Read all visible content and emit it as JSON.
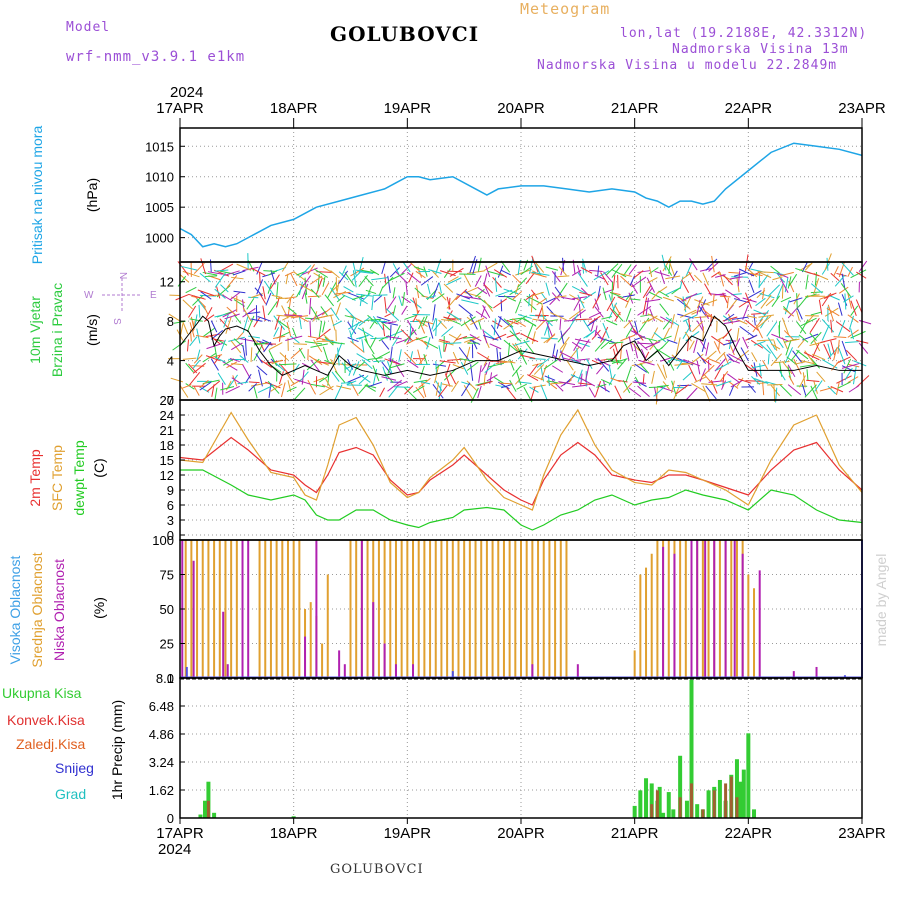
{
  "header": {
    "model_label": "Model",
    "model_name": "wrf-nmm_v3.9.1 e1km",
    "title": "GOLUBOVCI",
    "meteogram": "Meteogram",
    "lonlat": "lon,lat (19.2188E, 42.3312N)",
    "altitude": "Nadmorska Visina 13m",
    "model_altitude": "Nadmorska Visina u modelu 22.2849m",
    "year_top": "2024",
    "year_bottom": "2024",
    "footer": "GOLUBOVCI",
    "credit": "made by Angel"
  },
  "colors": {
    "pressure": "#1ea5e6",
    "temp2m": "#e83030",
    "sfc": "#e0a030",
    "dewpt": "#22cc22",
    "high_cloud": "#5050e0",
    "mid_cloud": "#e0a030",
    "low_cloud": "#b020b0",
    "precip_total": "#33cc33",
    "precip_conv": "#e03030",
    "precip_frozen": "#e06020",
    "snow": "#3030d0",
    "grad": "#20c0c0",
    "model_text": "#9b4fd6",
    "meteogram_text": "#e8b060"
  },
  "panel_labels": {
    "pressure": [
      "Pritisak na nivou mora",
      "(hPa)"
    ],
    "wind": [
      "10m Vjetar",
      "Brzina i Pravac",
      "(m/s)"
    ],
    "compass": {
      "n": "N",
      "s": "S",
      "e": "E",
      "w": "W"
    },
    "temp": [
      "2m Temp",
      "SFC Temp",
      "dewpt Temp",
      "(C)"
    ],
    "cloud": [
      "Visoka Oblacnost",
      "Srednja Oblacnost",
      "Niska Oblacnost",
      "(%)"
    ],
    "precip": [
      "Ukupna Kisa",
      "Konvek.Kisa",
      "Zaledj.Kisa",
      "Snijeg",
      "Grad",
      "1hr Precip (mm)"
    ]
  },
  "chart_data": [
    {
      "type": "line",
      "name": "pressure",
      "x_categories": [
        "17APR",
        "18APR",
        "19APR",
        "20APR",
        "21APR",
        "22APR",
        "23APR"
      ],
      "ylim": [
        996,
        1018
      ],
      "yticks": [
        1000,
        1005,
        1010,
        1015
      ],
      "x_days": [
        0,
        0.1,
        0.2,
        0.3,
        0.4,
        0.5,
        0.6,
        0.7,
        0.8,
        1.0,
        1.2,
        1.4,
        1.6,
        1.8,
        1.9,
        2.0,
        2.1,
        2.2,
        2.4,
        2.6,
        2.7,
        2.8,
        3.0,
        3.2,
        3.4,
        3.6,
        3.8,
        4.0,
        4.1,
        4.2,
        4.3,
        4.4,
        4.5,
        4.6,
        4.7,
        4.8,
        5.0,
        5.2,
        5.4,
        5.6,
        5.8,
        6.0
      ],
      "values": [
        1001.5,
        1000.5,
        998.5,
        999,
        998.5,
        999,
        1000,
        1001,
        1002,
        1003,
        1005,
        1006,
        1007,
        1008,
        1009,
        1010,
        1010,
        1009.5,
        1010,
        1008,
        1007,
        1008,
        1008.5,
        1008.5,
        1008,
        1007.5,
        1008,
        1007.5,
        1006.5,
        1006,
        1005,
        1006,
        1006,
        1005.5,
        1006,
        1008,
        1011,
        1014,
        1015.5,
        1015,
        1014.5,
        1013.5
      ]
    },
    {
      "type": "line",
      "name": "wind",
      "ylim": [
        0,
        14
      ],
      "yticks": [
        0,
        4,
        8,
        12
      ],
      "x_days": [
        0,
        0.1,
        0.2,
        0.25,
        0.3,
        0.35,
        0.4,
        0.5,
        0.6,
        0.7,
        0.8,
        0.9,
        1.0,
        1.1,
        1.2,
        1.3,
        1.4,
        1.5,
        1.6,
        1.8,
        2.0,
        2.2,
        2.4,
        2.6,
        2.8,
        3.0,
        3.2,
        3.4,
        3.6,
        3.8,
        3.9,
        4.0,
        4.1,
        4.2,
        4.3,
        4.4,
        4.5,
        4.6,
        4.7,
        4.8,
        4.9,
        5.0,
        5.2,
        5.4,
        5.6,
        5.8,
        6.0
      ],
      "values": [
        5.5,
        7,
        8.5,
        8,
        5.5,
        6.5,
        7.2,
        7.5,
        7,
        5,
        3.5,
        2.5,
        3,
        3.5,
        3,
        2.5,
        4.5,
        3.5,
        3,
        2.5,
        3,
        2.5,
        3,
        4,
        4,
        5,
        4.5,
        4,
        3.5,
        4,
        5.5,
        6,
        4,
        5,
        3.5,
        5,
        6.5,
        6,
        8.5,
        7.5,
        5,
        3,
        3,
        3,
        3.5,
        3,
        3
      ]
    },
    {
      "type": "line",
      "name": "temperature",
      "ylim": [
        -1,
        27
      ],
      "yticks": [
        0,
        3,
        6,
        9,
        12,
        15,
        18,
        21,
        24,
        27
      ],
      "x_days": [
        0,
        0.2,
        0.45,
        0.6,
        0.8,
        1.0,
        1.1,
        1.2,
        1.3,
        1.4,
        1.55,
        1.7,
        1.85,
        2.0,
        2.1,
        2.2,
        2.4,
        2.5,
        2.7,
        2.85,
        3.0,
        3.1,
        3.2,
        3.35,
        3.5,
        3.65,
        3.8,
        4.0,
        4.15,
        4.3,
        4.45,
        4.6,
        4.8,
        5.0,
        5.2,
        5.4,
        5.6,
        5.8,
        6.0
      ],
      "series": [
        {
          "name": "2m Temp",
          "values": [
            15.5,
            15,
            19.5,
            17,
            13,
            12,
            10,
            8.5,
            12,
            16.5,
            17.5,
            16,
            11,
            8,
            8.5,
            11,
            14,
            16,
            12,
            9,
            7,
            6,
            11,
            16,
            18.5,
            16,
            12,
            11,
            10.5,
            12,
            12,
            11,
            9.5,
            8,
            13,
            17,
            18.5,
            13,
            9
          ]
        },
        {
          "name": "SFC Temp",
          "values": [
            15,
            14.5,
            24.5,
            19,
            12.5,
            11.5,
            8,
            7,
            14,
            22,
            23.5,
            18,
            10.5,
            7.5,
            8.5,
            11.5,
            15,
            17.5,
            11,
            7.5,
            6,
            5,
            12,
            20,
            25,
            18,
            13,
            10.5,
            10,
            13,
            12.5,
            11,
            9,
            6,
            15,
            22,
            24,
            14,
            8.5
          ]
        },
        {
          "name": "dewpt Temp",
          "values": [
            13,
            13,
            10,
            8,
            7,
            8,
            7,
            4,
            3,
            3,
            5,
            5,
            3,
            2,
            1.5,
            2.5,
            3.5,
            5,
            5.5,
            5,
            2,
            1,
            2,
            4,
            5,
            7,
            8,
            6,
            7,
            7.5,
            9,
            8,
            7,
            5,
            9,
            8,
            5,
            3,
            2.5
          ]
        }
      ]
    },
    {
      "type": "bar",
      "name": "cloud_cover",
      "ylim": [
        0,
        100
      ],
      "yticks": [
        0,
        25,
        50,
        75,
        100
      ],
      "series": [
        {
          "name": "Srednja Oblacnost",
          "bars": [
            [
              0.05,
              100
            ],
            [
              0.1,
              100
            ],
            [
              0.15,
              100
            ],
            [
              0.2,
              100
            ],
            [
              0.25,
              100
            ],
            [
              0.3,
              100
            ],
            [
              0.35,
              100
            ],
            [
              0.4,
              100
            ],
            [
              0.45,
              100
            ],
            [
              0.5,
              100
            ],
            [
              0.7,
              100
            ],
            [
              0.75,
              100
            ],
            [
              0.8,
              100
            ],
            [
              0.85,
              100
            ],
            [
              0.9,
              100
            ],
            [
              0.95,
              100
            ],
            [
              1.0,
              100
            ],
            [
              1.05,
              100
            ],
            [
              1.1,
              50
            ],
            [
              1.15,
              55
            ],
            [
              1.2,
              45
            ],
            [
              1.25,
              25
            ],
            [
              1.3,
              75
            ],
            [
              1.5,
              100
            ],
            [
              1.55,
              100
            ],
            [
              1.6,
              100
            ],
            [
              1.65,
              100
            ],
            [
              1.7,
              100
            ],
            [
              1.75,
              100
            ],
            [
              1.8,
              100
            ],
            [
              1.85,
              100
            ],
            [
              1.9,
              100
            ],
            [
              1.95,
              100
            ],
            [
              2.0,
              100
            ],
            [
              2.05,
              100
            ],
            [
              2.1,
              100
            ],
            [
              2.15,
              100
            ],
            [
              2.2,
              100
            ],
            [
              2.25,
              100
            ],
            [
              2.3,
              100
            ],
            [
              2.35,
              100
            ],
            [
              2.4,
              100
            ],
            [
              2.45,
              100
            ],
            [
              2.5,
              100
            ],
            [
              2.55,
              100
            ],
            [
              2.6,
              100
            ],
            [
              2.65,
              100
            ],
            [
              2.7,
              100
            ],
            [
              2.75,
              100
            ],
            [
              2.8,
              100
            ],
            [
              2.85,
              100
            ],
            [
              2.9,
              100
            ],
            [
              2.95,
              100
            ],
            [
              3.0,
              100
            ],
            [
              3.05,
              100
            ],
            [
              3.1,
              100
            ],
            [
              3.15,
              100
            ],
            [
              3.2,
              100
            ],
            [
              3.25,
              100
            ],
            [
              3.3,
              100
            ],
            [
              3.35,
              100
            ],
            [
              3.4,
              100
            ],
            [
              4.0,
              20
            ],
            [
              4.05,
              75
            ],
            [
              4.1,
              80
            ],
            [
              4.15,
              90
            ],
            [
              4.2,
              100
            ],
            [
              4.25,
              100
            ],
            [
              4.3,
              100
            ],
            [
              4.35,
              100
            ],
            [
              4.4,
              100
            ],
            [
              4.45,
              100
            ],
            [
              4.5,
              100
            ],
            [
              4.55,
              100
            ],
            [
              4.6,
              100
            ],
            [
              4.65,
              100
            ],
            [
              4.7,
              100
            ],
            [
              4.75,
              100
            ],
            [
              4.8,
              100
            ],
            [
              4.85,
              100
            ],
            [
              4.9,
              100
            ],
            [
              4.95,
              100
            ],
            [
              5.0,
              75
            ],
            [
              5.05,
              65
            ],
            [
              6.0,
              100
            ]
          ]
        },
        {
          "name": "Niska Oblacnost",
          "bars": [
            [
              0.02,
              100
            ],
            [
              0.12,
              85
            ],
            [
              0.38,
              48
            ],
            [
              0.42,
              10
            ],
            [
              0.55,
              100
            ],
            [
              0.6,
              100
            ],
            [
              1.1,
              30
            ],
            [
              1.2,
              100
            ],
            [
              1.4,
              20
            ],
            [
              1.45,
              10
            ],
            [
              1.6,
              100
            ],
            [
              1.7,
              55
            ],
            [
              1.8,
              25
            ],
            [
              1.9,
              10
            ],
            [
              2.05,
              10
            ],
            [
              3.1,
              10
            ],
            [
              3.5,
              10
            ],
            [
              4.25,
              95
            ],
            [
              4.35,
              90
            ],
            [
              4.5,
              100
            ],
            [
              4.55,
              100
            ],
            [
              4.62,
              100
            ],
            [
              4.7,
              100
            ],
            [
              4.8,
              100
            ],
            [
              4.88,
              100
            ],
            [
              4.95,
              90
            ],
            [
              5.1,
              78
            ],
            [
              5.4,
              5
            ],
            [
              5.6,
              8
            ]
          ]
        },
        {
          "name": "Visoka Oblacnost",
          "bars": [
            [
              0.06,
              8
            ],
            [
              2.4,
              5
            ],
            [
              5.85,
              2
            ],
            [
              6.0,
              100
            ]
          ]
        }
      ]
    },
    {
      "type": "bar",
      "name": "precipitation",
      "ylim": [
        0,
        8.1
      ],
      "yticks": [
        0,
        1.62,
        3.24,
        4.86,
        6.48,
        8.1
      ],
      "series": [
        {
          "name": "Ukupna Kisa",
          "bars": [
            [
              0.18,
              0.2
            ],
            [
              0.22,
              1.0
            ],
            [
              0.25,
              2.1
            ],
            [
              0.3,
              0.3
            ],
            [
              1.0,
              0.1
            ],
            [
              4.0,
              0.7
            ],
            [
              4.05,
              1.6
            ],
            [
              4.1,
              2.3
            ],
            [
              4.15,
              2.0
            ],
            [
              4.2,
              1.0
            ],
            [
              4.22,
              1.8
            ],
            [
              4.25,
              0.3
            ],
            [
              4.3,
              1.5
            ],
            [
              4.34,
              0.5
            ],
            [
              4.4,
              3.6
            ],
            [
              4.46,
              1.0
            ],
            [
              4.5,
              8.0
            ],
            [
              4.55,
              0.8
            ],
            [
              4.6,
              0.5
            ],
            [
              4.65,
              1.6
            ],
            [
              4.7,
              1.8
            ],
            [
              4.75,
              2.2
            ],
            [
              4.8,
              1.0
            ],
            [
              4.85,
              2.5
            ],
            [
              4.9,
              3.4
            ],
            [
              4.93,
              2.1
            ],
            [
              4.96,
              2.8
            ],
            [
              5.0,
              4.9
            ],
            [
              5.05,
              0.5
            ]
          ]
        },
        {
          "name": "Konvek.Kisa",
          "bars": [
            [
              0.25,
              1.0
            ],
            [
              4.15,
              0.8
            ],
            [
              4.2,
              1.6
            ],
            [
              4.4,
              1.2
            ],
            [
              4.5,
              2.0
            ],
            [
              4.6,
              0.5
            ],
            [
              4.7,
              1.6
            ],
            [
              4.8,
              2.0
            ],
            [
              4.85,
              2.4
            ],
            [
              4.9,
              1.2
            ]
          ]
        }
      ]
    }
  ]
}
